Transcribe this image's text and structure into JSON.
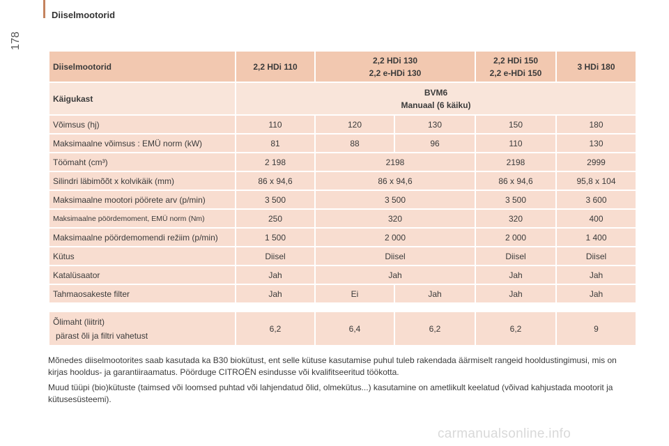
{
  "page": {
    "section_title": "Diiselmootorid",
    "page_number": "178"
  },
  "header": {
    "first": "Diiselmootorid",
    "columns": [
      [
        "2,2 HDi 110"
      ],
      [
        "2,2 HDi 130",
        "2,2 e-HDi 130"
      ],
      [
        "2,2 HDi 150",
        "2,2 e-HDi 150"
      ],
      [
        "3 HDi 180"
      ]
    ]
  },
  "gearbox": {
    "label": "Käigukast",
    "line1": "BVM6",
    "line2": "Manuaal (6 käiku)"
  },
  "rows": [
    {
      "label": "Võimsus (hj)",
      "cells": [
        "110",
        "120",
        "130",
        "150",
        "180"
      ]
    },
    {
      "label": "Maksimaalne võimsus : EMÜ norm (kW)",
      "cells": [
        "81",
        "88",
        "96",
        "110",
        "130"
      ]
    },
    {
      "label": "Töömaht (cm³)",
      "cells": [
        "2 198",
        "2198",
        "2198",
        "2999"
      ]
    },
    {
      "label": "Silindri läbimõõt x kolvikäik (mm)",
      "cells": [
        "86 x 94,6",
        "86 x 94,6",
        "86 x 94,6",
        "95,8 x 104"
      ]
    },
    {
      "label": "Maksimaalne mootori pöörete arv (p/min)",
      "cells": [
        "3 500",
        "3 500",
        "3 500",
        "3 600"
      ]
    },
    {
      "label": "Maksimaalne pöördemoment, EMÜ norm (Nm)",
      "cells": [
        "250",
        "320",
        "320",
        "400"
      ]
    },
    {
      "label": "Maksimaalne pöördemomendi režiim (p/min)",
      "cells": [
        "1 500",
        "2 000",
        "2 000",
        "1 400"
      ]
    },
    {
      "label": "Kütus",
      "cells": [
        "Diisel",
        "Diisel",
        "Diisel",
        "Diisel"
      ]
    },
    {
      "label": "Katalüsaator",
      "cells": [
        "Jah",
        "Jah",
        "Jah",
        "Jah"
      ]
    },
    {
      "label": "Tahmaosakeste filter",
      "cells": [
        "Jah",
        "Ei",
        "Jah",
        "Jah",
        "Jah"
      ]
    }
  ],
  "oil": {
    "label_line1": "Õlimaht (liitrit)",
    "label_line2": "pärast õli ja filtri vahetust",
    "cells": [
      "6,2",
      "6,4",
      "6,2",
      "6,2",
      "9"
    ]
  },
  "notes": [
    "Mõnedes diiselmootorites saab kasutada ka B30 biokütust, ent selle kütuse kasutamise puhul tuleb rakendada äärmiselt rangeid hooldustingimusi, mis on kirjas hooldus- ja garantiiraamatus. Pöörduge CITROËN esindusse või kvalifitseeritud töökotta.",
    "Muud tüüpi (bio)kütuste (taimsed või loomsed puhtad või lahjendatud õlid, olmekütus...) kasutamine on ametlikult keelatud (võivad kahjustada mootorit ja kütusesüsteemi)."
  ],
  "watermark": "carmanualsonline.info"
}
